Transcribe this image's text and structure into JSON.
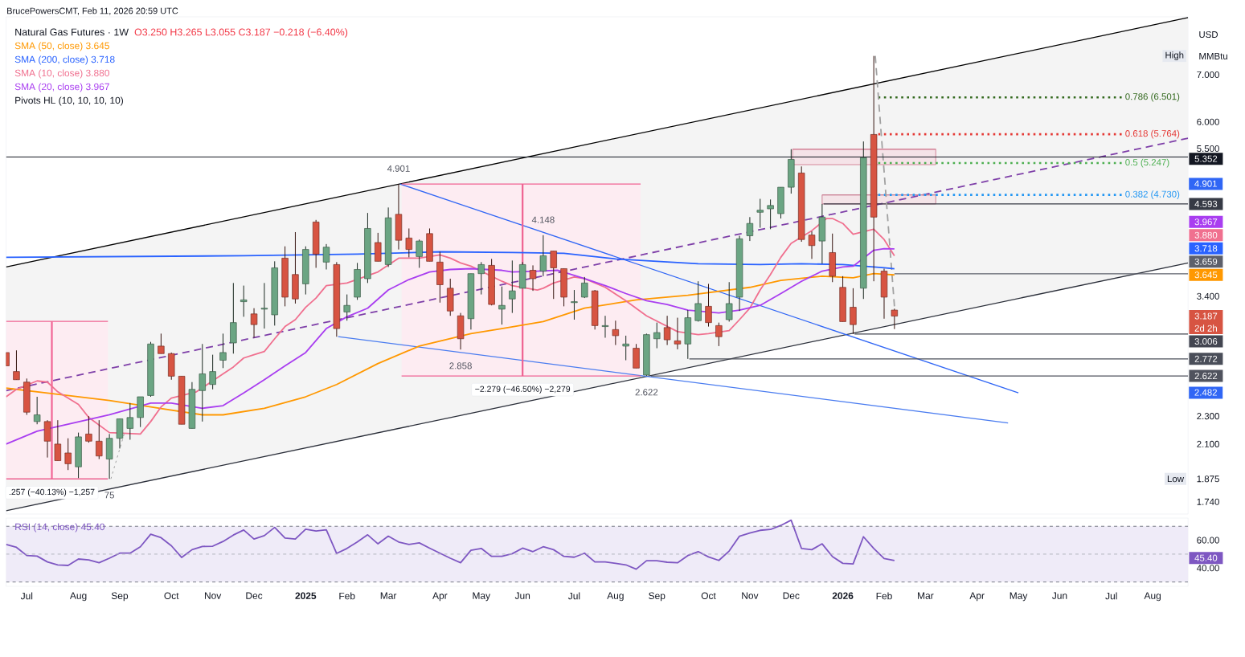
{
  "chart_data": [
    {
      "type": "candlestick",
      "title": "Natural Gas Futures · 1W",
      "subtitle": "O3.250 H3.265 L3.055 C3.187 −0.218 (−6.40%)",
      "ylabel": "USD",
      "x": [
        "2024-06-17",
        "2024-06-24",
        "2024-07-01",
        "2024-07-08",
        "2024-07-15",
        "2024-07-22",
        "2024-07-29",
        "2024-08-05",
        "2024-08-12",
        "2024-08-19",
        "2024-08-26",
        "2024-09-02",
        "2024-09-09",
        "2024-09-16",
        "2024-09-23",
        "2024-09-30",
        "2024-10-07",
        "2024-10-14",
        "2024-10-21",
        "2024-10-28",
        "2024-11-04",
        "2024-11-11",
        "2024-11-18",
        "2024-11-25",
        "2024-12-02",
        "2024-12-09",
        "2024-12-16",
        "2024-12-23",
        "2024-12-30",
        "2025-01-06",
        "2025-01-13",
        "2025-01-20",
        "2025-01-27",
        "2025-02-03",
        "2025-02-10",
        "2025-02-17",
        "2025-02-24",
        "2025-03-03",
        "2025-03-10",
        "2025-03-17",
        "2025-03-24",
        "2025-03-31",
        "2025-04-07",
        "2025-04-14",
        "2025-04-21",
        "2025-04-28",
        "2025-05-05",
        "2025-05-12",
        "2025-05-19",
        "2025-05-26",
        "2025-06-02",
        "2025-06-09",
        "2025-06-16",
        "2025-06-23",
        "2025-06-30",
        "2025-07-07",
        "2025-07-14",
        "2025-07-21",
        "2025-07-28",
        "2025-08-04",
        "2025-08-11",
        "2025-08-18",
        "2025-08-25",
        "2025-09-01",
        "2025-09-08",
        "2025-09-15",
        "2025-09-22",
        "2025-09-29",
        "2025-10-06",
        "2025-10-13",
        "2025-10-20",
        "2025-10-27",
        "2025-11-03",
        "2025-11-10",
        "2025-11-17",
        "2025-11-24",
        "2025-12-01",
        "2025-12-08",
        "2025-12-15",
        "2025-12-22",
        "2025-12-29",
        "2026-01-05",
        "2026-01-12",
        "2026-01-19",
        "2026-01-26",
        "2026-02-02",
        "2026-02-09"
      ],
      "ohlc": [
        [
          2.83,
          2.83,
          2.71,
          2.71
        ],
        [
          2.66,
          2.85,
          2.59,
          2.59
        ],
        [
          2.57,
          2.6,
          2.31,
          2.33
        ],
        [
          2.26,
          2.45,
          2.24,
          2.31
        ],
        [
          2.26,
          2.27,
          2.01,
          2.12
        ],
        [
          2.1,
          2.27,
          1.99,
          1.99
        ],
        [
          2.04,
          2.14,
          1.93,
          1.97
        ],
        [
          1.95,
          2.18,
          1.88,
          2.15
        ],
        [
          2.17,
          2.3,
          2.11,
          2.12
        ],
        [
          2.12,
          2.27,
          2.0,
          2.02
        ],
        [
          2.0,
          2.17,
          1.875,
          2.14
        ],
        [
          2.14,
          2.28,
          2.07,
          2.28
        ],
        [
          2.21,
          2.4,
          2.13,
          2.29
        ],
        [
          2.29,
          2.45,
          2.22,
          2.45
        ],
        [
          2.46,
          2.93,
          2.45,
          2.91
        ],
        [
          2.89,
          3.01,
          2.82,
          2.82
        ],
        [
          2.82,
          2.83,
          2.59,
          2.62
        ],
        [
          2.62,
          2.62,
          2.24,
          2.24
        ],
        [
          2.21,
          2.57,
          2.21,
          2.51
        ],
        [
          2.5,
          2.91,
          2.26,
          2.64
        ],
        [
          2.55,
          2.81,
          2.51,
          2.66
        ],
        [
          2.76,
          3.01,
          2.69,
          2.83
        ],
        [
          2.92,
          3.55,
          2.82,
          3.12
        ],
        [
          3.34,
          3.52,
          3.18,
          3.36
        ],
        [
          3.21,
          3.27,
          2.97,
          3.1
        ],
        [
          3.26,
          3.55,
          3.06,
          3.27
        ],
        [
          3.2,
          3.81,
          3.09,
          3.73
        ],
        [
          3.85,
          4.0,
          3.29,
          3.39
        ],
        [
          3.65,
          4.19,
          3.32,
          3.37
        ],
        [
          3.54,
          4.0,
          3.42,
          3.96
        ],
        [
          4.33,
          4.36,
          3.73,
          3.9
        ],
        [
          3.8,
          4.03,
          3.71,
          3.99
        ],
        [
          3.77,
          3.8,
          2.98,
          3.06
        ],
        [
          3.23,
          3.42,
          3.14,
          3.3
        ],
        [
          3.39,
          3.79,
          3.36,
          3.71
        ],
        [
          3.6,
          4.46,
          3.55,
          4.24
        ],
        [
          4.05,
          4.18,
          3.81,
          3.81
        ],
        [
          3.77,
          4.54,
          3.74,
          4.39
        ],
        [
          4.44,
          4.901,
          3.96,
          4.08
        ],
        [
          4.11,
          4.24,
          3.86,
          3.96
        ],
        [
          3.87,
          4.09,
          3.73,
          4.07
        ],
        [
          4.17,
          4.24,
          3.81,
          3.81
        ],
        [
          3.8,
          3.93,
          3.33,
          3.53
        ],
        [
          3.49,
          3.6,
          3.19,
          3.24
        ],
        [
          3.19,
          3.22,
          2.858,
          2.96
        ],
        [
          3.16,
          3.66,
          3.05,
          3.66
        ],
        [
          3.66,
          3.8,
          3.42,
          3.77
        ],
        [
          3.76,
          3.84,
          3.3,
          3.31
        ],
        [
          3.26,
          3.51,
          3.1,
          3.3
        ],
        [
          3.37,
          3.82,
          3.22,
          3.46
        ],
        [
          3.49,
          3.8,
          3.49,
          3.77
        ],
        [
          3.7,
          3.76,
          3.46,
          3.6
        ],
        [
          3.69,
          4.148,
          3.63,
          3.88
        ],
        [
          3.94,
          3.94,
          3.37,
          3.73
        ],
        [
          3.72,
          3.72,
          3.29,
          3.39
        ],
        [
          3.33,
          3.47,
          3.15,
          3.34
        ],
        [
          3.39,
          3.62,
          3.38,
          3.55
        ],
        [
          3.46,
          3.47,
          3.05,
          3.09
        ],
        [
          3.08,
          3.19,
          2.97,
          3.09
        ],
        [
          3.05,
          3.14,
          2.9,
          2.99
        ],
        [
          2.89,
          2.99,
          2.76,
          2.91
        ],
        [
          2.87,
          2.91,
          2.69,
          2.69
        ],
        [
          2.63,
          3.01,
          2.622,
          3.0
        ],
        [
          2.96,
          3.12,
          2.87,
          3.02
        ],
        [
          3.07,
          3.19,
          2.9,
          2.95
        ],
        [
          2.94,
          3.17,
          2.86,
          2.91
        ],
        [
          2.91,
          3.25,
          2.772,
          3.17
        ],
        [
          3.14,
          3.57,
          3.13,
          3.32
        ],
        [
          3.29,
          3.54,
          3.08,
          3.12
        ],
        [
          3.09,
          3.12,
          2.89,
          2.98
        ],
        [
          3.15,
          3.56,
          3.13,
          3.32
        ],
        [
          3.39,
          4.14,
          3.24,
          4.1
        ],
        [
          4.14,
          4.4,
          4.07,
          4.31
        ],
        [
          4.47,
          4.67,
          4.25,
          4.5
        ],
        [
          4.52,
          4.66,
          4.23,
          4.57
        ],
        [
          4.45,
          4.85,
          4.38,
          4.85
        ],
        [
          4.85,
          5.49,
          4.75,
          5.31
        ],
        [
          5.08,
          5.19,
          4.06,
          4.09
        ],
        [
          4.15,
          4.2,
          3.84,
          4.01
        ],
        [
          4.07,
          4.593,
          3.78,
          4.4
        ],
        [
          3.92,
          4.17,
          3.56,
          3.63
        ],
        [
          3.5,
          3.63,
          3.13,
          3.13
        ],
        [
          3.28,
          3.49,
          3.006,
          3.1
        ],
        [
          3.49,
          5.63,
          3.37,
          5.34
        ],
        [
          5.76,
          7.44,
          3.57,
          4.4
        ],
        [
          3.69,
          3.72,
          3.16,
          3.39
        ],
        [
          3.25,
          3.265,
          3.055,
          3.187
        ]
      ],
      "colors": [
        "#d75442",
        "#d75442",
        "#d75442",
        "#6ba583",
        "#d75442",
        "#d75442",
        "#d75442",
        "#6ba583",
        "#d75442",
        "#d75442",
        "#6ba583",
        "#6ba583",
        "#6ba583",
        "#6ba583",
        "#6ba583",
        "#d75442",
        "#d75442",
        "#d75442",
        "#6ba583",
        "#6ba583",
        "#6ba583",
        "#6ba583",
        "#6ba583",
        "#6ba583",
        "#d75442",
        "#6ba583",
        "#6ba583",
        "#d75442",
        "#d75442",
        "#6ba583",
        "#d75442",
        "#6ba583",
        "#d75442",
        "#6ba583",
        "#6ba583",
        "#6ba583",
        "#d75442",
        "#6ba583",
        "#d75442",
        "#d75442",
        "#6ba583",
        "#d75442",
        "#d75442",
        "#d75442",
        "#d75442",
        "#6ba583",
        "#6ba583",
        "#d75442",
        "#6ba583",
        "#6ba583",
        "#6ba583",
        "#d75442",
        "#6ba583",
        "#d75442",
        "#d75442",
        "#6ba583",
        "#6ba583",
        "#d75442",
        "#6ba583",
        "#d75442",
        "#6ba583",
        "#d75442",
        "#6ba583",
        "#6ba583",
        "#d75442",
        "#d75442",
        "#6ba583",
        "#6ba583",
        "#d75442",
        "#d75442",
        "#6ba583",
        "#6ba583",
        "#6ba583",
        "#6ba583",
        "#6ba583",
        "#6ba583",
        "#6ba583",
        "#d75442",
        "#d75442",
        "#6ba583",
        "#d75442",
        "#d75442",
        "#d75442",
        "#6ba583",
        "#d75442",
        "#d75442",
        "#d75442"
      ],
      "value_labels": [
        null,
        null,
        null,
        null,
        null,
        null,
        null,
        null,
        null,
        null,
        "Low",
        null,
        null,
        null,
        null,
        null,
        null,
        null,
        null,
        null,
        null,
        null,
        null,
        null,
        null,
        null,
        null,
        null,
        null,
        null,
        null,
        null,
        null,
        null,
        null,
        null,
        null,
        null,
        null,
        null,
        null,
        null,
        null,
        null,
        null,
        null,
        null,
        null,
        null,
        null,
        null,
        null,
        null,
        null,
        null,
        null,
        null,
        null,
        null,
        null,
        null,
        null,
        null,
        null,
        null,
        null,
        null,
        null,
        null,
        null,
        null,
        null,
        null,
        null,
        null,
        null,
        null,
        null,
        null,
        null,
        null,
        null,
        null,
        null,
        "High",
        null,
        "3.187"
      ],
      "log": "y",
      "xlim": [
        "2024-06-17",
        "2026-08-27"
      ],
      "ylim": [
        1.672,
        8.45
      ],
      "yticks": [
        {
          "value": 1.74,
          "label": "1.740"
        },
        {
          "value": 1.875,
          "label": "1.875"
        },
        {
          "value": 2.1,
          "label": "2.100"
        },
        {
          "value": 2.3,
          "label": "2.300"
        },
        {
          "value": 2.482,
          "label": "2.482"
        },
        {
          "value": 3.4,
          "label": "3.400"
        },
        {
          "value": 4.901,
          "label": "4.901"
        },
        {
          "value": 5.5,
          "label": "5.500"
        },
        {
          "value": 6,
          "label": "6.000"
        },
        {
          "value": 7,
          "label": "7.000"
        }
      ],
      "tick_labels": "y",
      "legend": "top left",
      "ref_lines": [
        {
          "axis": "y",
          "value": 5.352,
          "label": "5.352",
          "color": "#131722"
        }
      ],
      "series": [
        {
          "type": "line",
          "color": "#000000",
          "x": [
            "2024-06-17",
            "2026-08-27"
          ],
          "values": [
            3.74,
            8.43
          ],
          "lower": [
            1.69,
            3.79
          ],
          "upper": [
            3.74,
            8.43
          ]
        },
        {
          "type": "line",
          "color": "#2a2e39",
          "x": [
            "2024-06-17",
            "2026-08-27"
          ],
          "values": [
            1.69,
            3.79
          ]
        },
        {
          "type": "line",
          "color": "#7e3fa8",
          "line_style": "dashed",
          "x": [
            "2024-06-17",
            "2026-08-27"
          ],
          "values": [
            2.5,
            5.69
          ]
        },
        {
          "type": "line",
          "color": "#d4879b",
          "line_style": "solid",
          "x": [
            "2025-12-02",
            "2026-03-09"
          ],
          "values": [
            5.49,
            5.49
          ],
          "lower": [
            5.22,
            5.22
          ],
          "upper": [
            5.49,
            5.49
          ]
        },
        {
          "type": "line",
          "color": "#cc8396",
          "line_style": "solid",
          "x": [
            "2025-12-22",
            "2026-03-09"
          ],
          "values": [
            4.73,
            4.73
          ],
          "lower": [
            4.593,
            4.593
          ],
          "upper": [
            4.73,
            4.73
          ]
        },
        {
          "type": "line",
          "color": "#3066f5",
          "x": [
            "2025-03-11",
            "2026-05-04"
          ],
          "values": [
            4.901,
            2.482
          ]
        },
        {
          "type": "line",
          "color": "#4a7cf0",
          "x": [
            "2025-01-28",
            "2026-04-27"
          ],
          "values": [
            2.98,
            2.25
          ]
        },
        {
          "type": "line",
          "color": "#363a45",
          "x": [
            "2025-12-23",
            "2026-08-27"
          ],
          "values": [
            4.593,
            4.593
          ],
          "value_labels": [
            null,
            "4.593"
          ]
        },
        {
          "type": "line",
          "color": "#5d606b",
          "x": [
            "2026-02-09",
            "2026-08-27"
          ],
          "values": [
            3.659,
            3.659
          ],
          "value_labels": [
            null,
            "3.659"
          ]
        },
        {
          "type": "line",
          "color": "#434651",
          "x": [
            "2026-01-13",
            "2026-08-27"
          ],
          "values": [
            3.006,
            3.006
          ],
          "value_labels": [
            null,
            "3.006"
          ]
        },
        {
          "type": "line",
          "color": "#4a4e59",
          "x": [
            "2025-09-23",
            "2026-08-27"
          ],
          "values": [
            2.772,
            2.772
          ],
          "value_labels": [
            null,
            "2.772"
          ]
        },
        {
          "type": "line",
          "color": "#50535e",
          "x": [
            "2025-08-28",
            "2026-08-27"
          ],
          "values": [
            2.622,
            2.622
          ],
          "value_labels": [
            null,
            "2.622"
          ]
        },
        {
          "type": "line",
          "color": "#33691e",
          "line_style": "dotted",
          "x": [
            "2026-01-29",
            "2026-07-13"
          ],
          "values": [
            6.501,
            6.501
          ],
          "value_labels": [
            null,
            "0.786 (6.501)"
          ]
        },
        {
          "type": "line",
          "color": "#e53935",
          "line_style": "dotted",
          "x": [
            "2026-01-29",
            "2026-07-13"
          ],
          "values": [
            5.764,
            5.764
          ],
          "value_labels": [
            null,
            "0.618 (5.764)"
          ]
        },
        {
          "type": "line",
          "color": "#4caf50",
          "line_style": "dotted",
          "x": [
            "2026-01-29",
            "2026-07-13"
          ],
          "values": [
            5.247,
            5.247
          ],
          "value_labels": [
            null,
            "0.5 (5.247)"
          ]
        },
        {
          "type": "line",
          "color": "#2196f3",
          "line_style": "dotted",
          "x": [
            "2026-01-29",
            "2026-07-13"
          ],
          "values": [
            4.73,
            4.73
          ],
          "value_labels": [
            null,
            "0.382 (4.730)"
          ]
        },
        {
          "type": "line",
          "color": "#f06292",
          "x": [
            "2025-03-12",
            "2025-08-21"
          ],
          "values": [
            4.901,
            4.901
          ],
          "lower": [
            2.622,
            2.622
          ],
          "upper": [
            4.901,
            4.901
          ]
        },
        {
          "type": "line",
          "color": "#f06394",
          "x": [
            "2025-03-12",
            "2025-08-21"
          ],
          "values": [
            2.622,
            2.622
          ]
        },
        {
          "type": "line",
          "color": "#ef6191",
          "x": [
            "2025-06-02",
            "2025-06-02"
          ],
          "values": [
            4.901,
            2.622
          ]
        },
        {
          "type": "line",
          "color": "#f16393",
          "x": [
            "2024-06-17",
            "2024-08-25"
          ],
          "values": [
            3.132,
            3.132
          ],
          "lower": [
            1.875,
            1.875
          ],
          "upper": [
            3.132,
            3.132
          ]
        },
        {
          "type": "line",
          "color": "#ee6090",
          "x": [
            "2024-06-17",
            "2024-08-25"
          ],
          "values": [
            1.875,
            1.875
          ]
        },
        {
          "type": "line",
          "color": "#f26495",
          "x": [
            "2024-07-18",
            "2024-07-18"
          ],
          "values": [
            3.132,
            1.875
          ]
        },
        {
          "type": "line",
          "color": "#a0a0a0",
          "line_style": "dotted",
          "x": [
            "2024-08-27",
            "2024-09-05"
          ],
          "values": [
            1.875,
            2.17
          ]
        },
        {
          "type": "line",
          "color": "#a1a1a1",
          "line_style": "dashed",
          "x": [
            "2026-01-27",
            "2026-02-09"
          ],
          "values": [
            7.44,
            3.29
          ]
        },
        {
          "type": "line",
          "name": "SMA (50, close) 3.645",
          "color": "#ff9800",
          "x": [
            "2024-06-17",
            "2024-07-15",
            "2024-08-26",
            "2024-09-23",
            "2024-10-28",
            "2024-11-11",
            "2024-12-09",
            "2025-01-06",
            "2025-01-27",
            "2025-02-24",
            "2025-03-24",
            "2025-04-28",
            "2025-05-19",
            "2025-06-16",
            "2025-07-14",
            "2025-08-18",
            "2025-09-22",
            "2025-11-03",
            "2025-11-24",
            "2025-12-22",
            "2026-01-12",
            "2026-01-26",
            "2026-02-09"
          ],
          "values": [
            2.52,
            2.48,
            2.42,
            2.37,
            2.31,
            2.31,
            2.36,
            2.45,
            2.55,
            2.73,
            2.89,
            3.01,
            3.06,
            3.13,
            3.27,
            3.36,
            3.41,
            3.5,
            3.58,
            3.63,
            3.61,
            3.66,
            3.645
          ]
        },
        {
          "type": "line",
          "name": "SMA (200, close) 3.718",
          "color": "#2962ff",
          "x": [
            "2024-06-17",
            "2024-11-25",
            "2025-02-10",
            "2025-04-07",
            "2025-05-26",
            "2025-06-30",
            "2025-08-04",
            "2025-09-01",
            "2025-09-29",
            "2025-11-10",
            "2025-12-08",
            "2026-01-05",
            "2026-01-12",
            "2026-02-02",
            "2026-02-09"
          ],
          "values": [
            3.86,
            3.88,
            3.9,
            3.93,
            3.92,
            3.91,
            3.84,
            3.81,
            3.78,
            3.77,
            3.78,
            3.77,
            3.76,
            3.73,
            3.718
          ]
        },
        {
          "type": "line",
          "name": "SMA (10, close) 3.880",
          "color": "#f0708f",
          "x": [
            "2024-06-17",
            "2024-06-24",
            "2024-07-08",
            "2024-07-15",
            "2024-07-22",
            "2024-08-05",
            "2024-08-12",
            "2024-08-26",
            "2024-09-16",
            "2024-09-23",
            "2024-09-30",
            "2024-10-07",
            "2024-10-24",
            "2024-11-11",
            "2024-11-18",
            "2024-11-25",
            "2024-12-02",
            "2024-12-09",
            "2024-12-16",
            "2024-12-23",
            "2024-12-30",
            "2025-01-06",
            "2025-01-13",
            "2025-01-20",
            "2025-02-03",
            "2025-02-24",
            "2025-03-10",
            "2025-03-17",
            "2025-03-24",
            "2025-04-07",
            "2025-04-14",
            "2025-04-21",
            "2025-04-28",
            "2025-05-19",
            "2025-05-26",
            "2025-06-12",
            "2025-06-16",
            "2025-06-23",
            "2025-07-07",
            "2025-07-14",
            "2025-07-28",
            "2025-08-11",
            "2025-08-25",
            "2025-09-15",
            "2025-09-29",
            "2025-10-06",
            "2025-10-20",
            "2025-10-27",
            "2025-11-03",
            "2025-11-10",
            "2025-11-17",
            "2025-11-24",
            "2025-12-01",
            "2025-12-15",
            "2025-12-25",
            "2025-12-29",
            "2026-01-05",
            "2026-01-12",
            "2026-01-26",
            "2026-02-02",
            "2026-02-09"
          ],
          "values": [
            2.45,
            2.51,
            2.58,
            2.57,
            2.49,
            2.39,
            2.29,
            2.18,
            2.17,
            2.26,
            2.37,
            2.44,
            2.49,
            2.64,
            2.7,
            2.78,
            2.81,
            2.84,
            2.96,
            3.08,
            3.15,
            3.28,
            3.38,
            3.52,
            3.55,
            3.68,
            3.85,
            3.85,
            3.85,
            3.89,
            3.85,
            3.79,
            3.75,
            3.57,
            3.52,
            3.47,
            3.49,
            3.55,
            3.62,
            3.6,
            3.5,
            3.35,
            3.19,
            3.03,
            3.0,
            3.01,
            3.04,
            3.15,
            3.27,
            3.47,
            3.65,
            3.86,
            4.04,
            4.21,
            4.38,
            4.38,
            4.31,
            4.16,
            4.23,
            4.09,
            3.88
          ]
        },
        {
          "type": "line",
          "name": "SMA (20, close) 3.967",
          "color": "#a93ef0",
          "x": [
            "2024-06-17",
            "2024-07-08",
            "2024-07-29",
            "2024-08-26",
            "2024-09-23",
            "2024-10-07",
            "2024-10-28",
            "2024-11-11",
            "2024-11-25",
            "2024-12-09",
            "2024-12-23",
            "2025-01-06",
            "2025-01-20",
            "2025-02-03",
            "2025-02-17",
            "2025-03-03",
            "2025-03-17",
            "2025-03-31",
            "2025-04-14",
            "2025-04-28",
            "2025-05-19",
            "2025-05-26",
            "2025-06-12",
            "2025-06-26",
            "2025-07-07",
            "2025-07-14",
            "2025-07-28",
            "2025-08-11",
            "2025-08-25",
            "2025-09-08",
            "2025-09-22",
            "2025-10-13",
            "2025-10-27",
            "2025-11-10",
            "2025-11-24",
            "2025-12-08",
            "2025-12-22",
            "2026-01-05",
            "2026-01-12",
            "2026-01-26",
            "2026-02-02",
            "2026-02-09"
          ],
          "values": [
            2.1,
            2.19,
            2.24,
            2.31,
            2.4,
            2.4,
            2.36,
            2.38,
            2.48,
            2.59,
            2.71,
            2.83,
            3.06,
            3.18,
            3.27,
            3.47,
            3.59,
            3.68,
            3.71,
            3.72,
            3.7,
            3.68,
            3.69,
            3.7,
            3.64,
            3.6,
            3.52,
            3.43,
            3.35,
            3.31,
            3.25,
            3.22,
            3.25,
            3.3,
            3.43,
            3.57,
            3.69,
            3.74,
            3.75,
            3.95,
            3.97,
            3.967
          ]
        }
      ],
      "annotations": [
        "BrucePowersCMT, Feb 11, 2026 20:59 UTC",
        "MMBtu",
        "Pivots HL (10, 10, 10, 10)",
        {
          "text": "2d 2h",
          "y": 3.187
        },
        {
          "text": "75",
          "x": "2024-08-26",
          "y": 1.875
        },
        {
          "text": "4.901",
          "x": "2025-03-10",
          "y": 4.901
        },
        {
          "text": "2.858",
          "x": "2025-04-21",
          "y": 2.858
        },
        {
          "text": "4.148",
          "x": "2025-06-16",
          "y": 4.148
        },
        {
          "text": "2.622",
          "x": "2025-08-25",
          "y": 2.622
        },
        {
          "text": ".257 (−40.13%) −1,257",
          "x": "2024-07-18",
          "y": 1.875
        },
        {
          "text": "−2.279 (−46.50%) −2,279",
          "x": "2025-06-02",
          "y": 2.622
        },
        "3.645",
        "3.718",
        "3.880",
        "3.967"
      ]
    },
    {
      "type": "line",
      "x": [
        "2024-06-17",
        "2024-06-24",
        "2024-07-01",
        "2024-07-08",
        "2024-07-15",
        "2024-07-22",
        "2024-07-29",
        "2024-08-05",
        "2024-08-12",
        "2024-08-19",
        "2024-08-26",
        "2024-09-02",
        "2024-09-09",
        "2024-09-16",
        "2024-09-23",
        "2024-09-30",
        "2024-10-07",
        "2024-10-14",
        "2024-10-21",
        "2024-10-28",
        "2024-11-04",
        "2024-11-11",
        "2024-11-18",
        "2024-11-25",
        "2024-12-02",
        "2024-12-09",
        "2024-12-16",
        "2024-12-23",
        "2024-12-30",
        "2025-01-06",
        "2025-01-13",
        "2025-01-20",
        "2025-01-27",
        "2025-02-03",
        "2025-02-10",
        "2025-02-17",
        "2025-02-24",
        "2025-03-03",
        "2025-03-10",
        "2025-03-17",
        "2025-03-24",
        "2025-03-31",
        "2025-04-07",
        "2025-04-14",
        "2025-04-21",
        "2025-04-28",
        "2025-05-05",
        "2025-05-12",
        "2025-05-19",
        "2025-05-26",
        "2025-06-02",
        "2025-06-09",
        "2025-06-16",
        "2025-06-23",
        "2025-06-30",
        "2025-07-07",
        "2025-07-14",
        "2025-07-21",
        "2025-07-28",
        "2025-08-04",
        "2025-08-11",
        "2025-08-18",
        "2025-08-25",
        "2025-09-01",
        "2025-09-08",
        "2025-09-15",
        "2025-09-22",
        "2025-09-29",
        "2025-10-06",
        "2025-10-13",
        "2025-10-20",
        "2025-10-27",
        "2025-11-03",
        "2025-11-10",
        "2025-11-17",
        "2025-11-24",
        "2025-12-01",
        "2025-12-08",
        "2025-12-15",
        "2025-12-22",
        "2025-12-29",
        "2026-01-05",
        "2026-01-12",
        "2026-01-19",
        "2026-01-26",
        "2026-02-02",
        "2026-02-09"
      ],
      "xlim": [
        "2024-06-17",
        "2026-08-27"
      ],
      "xticks": [
        {
          "value": "2024-07-01",
          "label": "Jul"
        },
        {
          "value": "2024-08-05",
          "label": "Aug"
        },
        {
          "value": "2024-09-02",
          "label": "Sep"
        },
        {
          "value": "2024-10-07",
          "label": "Oct"
        },
        {
          "value": "2024-11-04",
          "label": "Nov"
        },
        {
          "value": "2024-12-02",
          "label": "Dec"
        },
        {
          "value": "2025-01-06",
          "label": "2025"
        },
        {
          "value": "2025-02-03",
          "label": "Feb"
        },
        {
          "value": "2025-03-03",
          "label": "Mar"
        },
        {
          "value": "2025-04-07",
          "label": "Apr"
        },
        {
          "value": "2025-05-05",
          "label": "May"
        },
        {
          "value": "2025-06-02",
          "label": "Jun"
        },
        {
          "value": "2025-07-07",
          "label": "Jul"
        },
        {
          "value": "2025-08-04",
          "label": "Aug"
        },
        {
          "value": "2025-09-01",
          "label": "Sep"
        },
        {
          "value": "2025-10-06",
          "label": "Oct"
        },
        {
          "value": "2025-11-03",
          "label": "Nov"
        },
        {
          "value": "2025-12-01",
          "label": "Dec"
        },
        {
          "value": "2026-01-05",
          "label": "2026"
        },
        {
          "value": "2026-02-02",
          "label": "Feb"
        },
        {
          "value": "2026-03-02",
          "label": "Mar"
        },
        {
          "value": "2026-04-06",
          "label": "Apr"
        },
        {
          "value": "2026-05-04",
          "label": "May"
        },
        {
          "value": "2026-06-01",
          "label": "Jun"
        },
        {
          "value": "2026-07-06",
          "label": "Jul"
        },
        {
          "value": "2026-08-03",
          "label": "Aug"
        }
      ],
      "ylim": [
        26.9,
        75.9
      ],
      "yticks": [
        {
          "value": 60,
          "label": "60.00"
        },
        {
          "value": 40,
          "label": "40.00"
        }
      ],
      "legend": "top left",
      "bands": [
        {
          "axis": "y",
          "from": 30,
          "to": 70,
          "color": "#efebf8"
        }
      ],
      "ref_lines": [
        {
          "axis": "y",
          "value": 70,
          "color": "#787b86",
          "line_style": "dashed"
        },
        {
          "axis": "y",
          "value": 50,
          "color": "#b2b5be",
          "line_style": "dashed"
        },
        {
          "axis": "y",
          "value": 30,
          "color": "#787b86",
          "line_style": "dashed"
        }
      ],
      "series": [
        {
          "name": "RSI (14, close) 45.40",
          "color": "#7e57c2",
          "values": [
            57.0,
            54.9,
            49.0,
            48.6,
            44.4,
            42.3,
            41.9,
            46.5,
            45.9,
            43.8,
            47.1,
            50.7,
            50.7,
            55.3,
            64.3,
            61.8,
            56.0,
            47.6,
            53.2,
            55.5,
            55.7,
            59.1,
            63.7,
            67.3,
            60.8,
            63.3,
            69.2,
            61.6,
            60.8,
            67.9,
            66.6,
            67.5,
            50.5,
            54.1,
            58.7,
            63.9,
            57.4,
            62.9,
            58.7,
            57.0,
            58.1,
            54.3,
            50.7,
            47.1,
            43.8,
            52.8,
            54.1,
            48.4,
            48.4,
            50.3,
            54.3,
            51.8,
            55.3,
            53.2,
            48.4,
            47.8,
            50.7,
            44.4,
            44.4,
            43.4,
            42.3,
            39.2,
            45.3,
            45.3,
            44.2,
            43.8,
            49.0,
            51.8,
            48.0,
            45.5,
            52.2,
            62.9,
            65.2,
            67.1,
            67.7,
            70.6,
            74.4,
            54.1,
            53.2,
            57.4,
            48.2,
            43.4,
            43.0,
            62.5,
            54.1,
            46.9,
            45.4
          ]
        }
      ],
      "annotations": [
        "45.40"
      ]
    }
  ]
}
